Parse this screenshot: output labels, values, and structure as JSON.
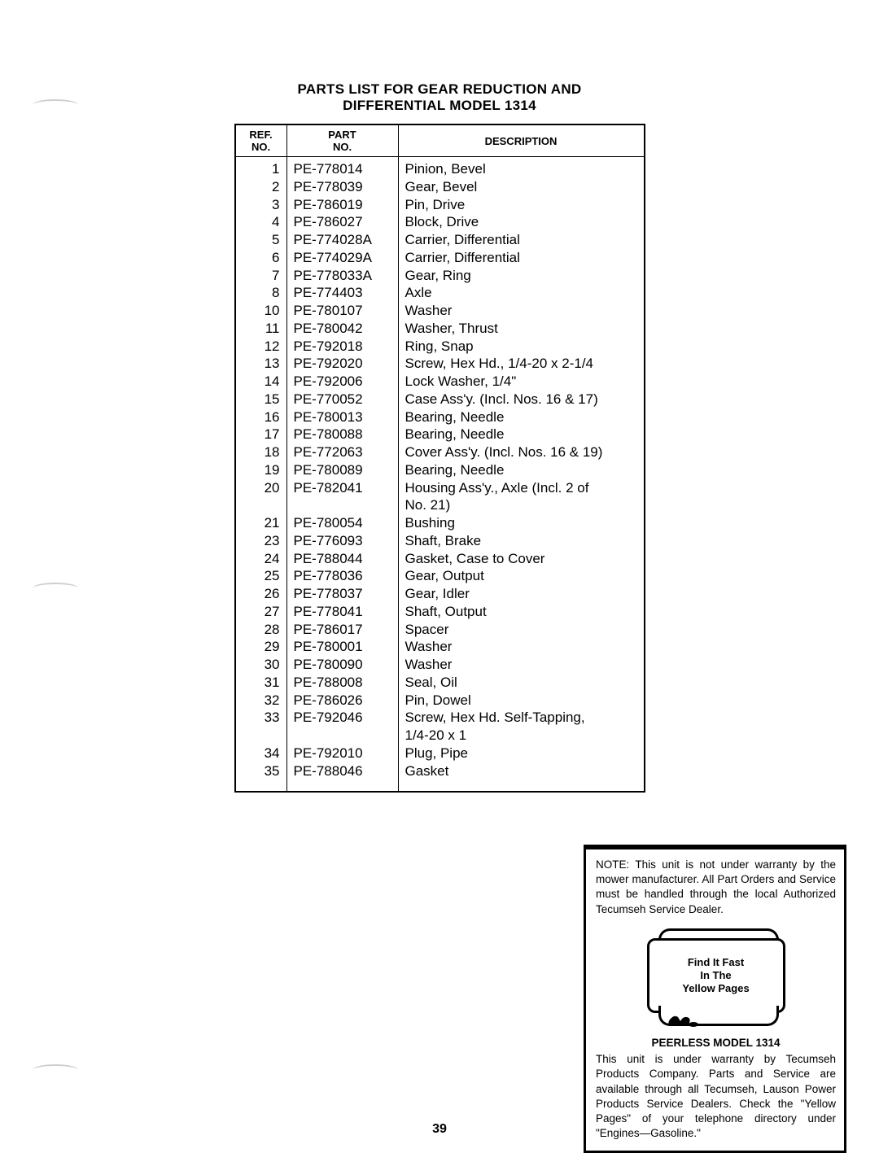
{
  "title": {
    "line1": "PARTS LIST FOR GEAR REDUCTION AND",
    "line2": "DIFFERENTIAL MODEL 1314"
  },
  "table": {
    "headers": {
      "ref": "REF.\nNO.",
      "part": "PART\nNO.",
      "desc": "DESCRIPTION"
    },
    "rows": [
      {
        "ref": "1",
        "part": "PE-778014",
        "desc": "Pinion, Bevel"
      },
      {
        "ref": "2",
        "part": "PE-778039",
        "desc": "Gear, Bevel"
      },
      {
        "ref": "3",
        "part": "PE-786019",
        "desc": "Pin, Drive"
      },
      {
        "ref": "4",
        "part": "PE-786027",
        "desc": "Block, Drive"
      },
      {
        "ref": "5",
        "part": "PE-774028A",
        "desc": "Carrier, Differential"
      },
      {
        "ref": "6",
        "part": "PE-774029A",
        "desc": "Carrier, Differential"
      },
      {
        "ref": "7",
        "part": "PE-778033A",
        "desc": "Gear, Ring"
      },
      {
        "ref": "8",
        "part": "PE-774403",
        "desc": "Axle"
      },
      {
        "ref": "10",
        "part": "PE-780107",
        "desc": "Washer"
      },
      {
        "ref": "11",
        "part": "PE-780042",
        "desc": "Washer, Thrust"
      },
      {
        "ref": "12",
        "part": "PE-792018",
        "desc": "Ring, Snap"
      },
      {
        "ref": "13",
        "part": "PE-792020",
        "desc": "Screw, Hex Hd., 1/4-20 x 2-1/4"
      },
      {
        "ref": "14",
        "part": "PE-792006",
        "desc": "Lock Washer, 1/4\""
      },
      {
        "ref": "15",
        "part": "PE-770052",
        "desc": "Case Ass'y. (Incl. Nos. 16 & 17)"
      },
      {
        "ref": "16",
        "part": "PE-780013",
        "desc": "Bearing, Needle"
      },
      {
        "ref": "17",
        "part": "PE-780088",
        "desc": "Bearing, Needle"
      },
      {
        "ref": "18",
        "part": "PE-772063",
        "desc": "Cover Ass'y. (Incl. Nos. 16 & 19)"
      },
      {
        "ref": "19",
        "part": "PE-780089",
        "desc": "Bearing, Needle"
      },
      {
        "ref": "20",
        "part": "PE-782041",
        "desc": "Housing Ass'y., Axle (Incl. 2 of\n  No. 21)"
      },
      {
        "ref": "21",
        "part": "PE-780054",
        "desc": "Bushing"
      },
      {
        "ref": "23",
        "part": "PE-776093",
        "desc": "Shaft, Brake"
      },
      {
        "ref": "24",
        "part": "PE-788044",
        "desc": "Gasket, Case to Cover"
      },
      {
        "ref": "25",
        "part": "PE-778036",
        "desc": "Gear, Output"
      },
      {
        "ref": "26",
        "part": "PE-778037",
        "desc": "Gear, Idler"
      },
      {
        "ref": "27",
        "part": "PE-778041",
        "desc": "Shaft, Output"
      },
      {
        "ref": "28",
        "part": "PE-786017",
        "desc": "Spacer"
      },
      {
        "ref": "29",
        "part": "PE-780001",
        "desc": "Washer"
      },
      {
        "ref": "30",
        "part": "PE-780090",
        "desc": "Washer"
      },
      {
        "ref": "31",
        "part": "PE-788008",
        "desc": "Seal, Oil"
      },
      {
        "ref": "32",
        "part": "PE-786026",
        "desc": "Pin, Dowel"
      },
      {
        "ref": "33",
        "part": "PE-792046",
        "desc": "Screw, Hex Hd. Self-Tapping,\n  1/4-20 x 1"
      },
      {
        "ref": "34",
        "part": "PE-792010",
        "desc": "Plug, Pipe"
      },
      {
        "ref": "35",
        "part": "PE-788046",
        "desc": "Gasket"
      }
    ]
  },
  "note": {
    "top_text": "NOTE: This unit is not under warranty by the mower manufacturer. All Part Orders and Service must be handled through the local Authorized Tecumseh Service Dealer.",
    "yp_line1": "Find It Fast",
    "yp_line2": "In The",
    "yp_line3": "Yellow Pages",
    "model_title": "PEERLESS MODEL 1314",
    "bottom_text": "This unit is under warranty by Tecumseh Products Company. Parts and Service are available through all Tecumseh, Lauson Power Products Service Dealers. Check the \"Yellow Pages\" of your telephone directory under \"Engines—Gasoline.\""
  },
  "page_number": "39"
}
